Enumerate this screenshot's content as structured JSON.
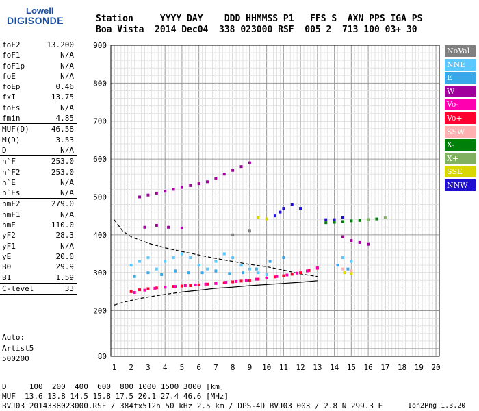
{
  "logo": {
    "line1": "Lowell",
    "line2": "DIGISONDE"
  },
  "header": {
    "line1": "Station     YYYY DAY    DDD HHMMSS P1   FFS S  AXN PPS IGA PS",
    "line2": "Boa Vista  2014 Dec04  338 023000 RSF  005 2  713 100 03+ 30"
  },
  "params": {
    "group1": [
      {
        "name": "foF2",
        "value": "13.200"
      },
      {
        "name": "foF1",
        "value": "N/A"
      },
      {
        "name": "foF1p",
        "value": "N/A"
      },
      {
        "name": "foE",
        "value": "N/A"
      },
      {
        "name": "foEp",
        "value": "0.46"
      },
      {
        "name": "fxI",
        "value": "13.75"
      },
      {
        "name": "foEs",
        "value": "N/A"
      },
      {
        "name": "fmin",
        "value": "4.85"
      }
    ],
    "group2": [
      {
        "name": "MUF(D)",
        "value": "46.58"
      },
      {
        "name": "M(D)",
        "value": "3.53"
      },
      {
        "name": "D",
        "value": "N/A"
      }
    ],
    "group3": [
      {
        "name": "h`F",
        "value": "253.0"
      },
      {
        "name": "h`F2",
        "value": "253.0"
      },
      {
        "name": "h`E",
        "value": "N/A"
      },
      {
        "name": "h`Es",
        "value": "N/A"
      }
    ],
    "group4": [
      {
        "name": "hmF2",
        "value": "279.0"
      },
      {
        "name": "hmF1",
        "value": "N/A"
      },
      {
        "name": "hmE",
        "value": "110.0"
      },
      {
        "name": "yF2",
        "value": "28.3"
      },
      {
        "name": "yF1",
        "value": "N/A"
      },
      {
        "name": "yE",
        "value": "20.0"
      },
      {
        "name": "B0",
        "value": "29.9"
      },
      {
        "name": "B1",
        "value": "1.59"
      }
    ],
    "group5": [
      {
        "name": "C-level",
        "value": "33"
      }
    ]
  },
  "autoscaling": {
    "line1": "Auto:",
    "line2": "Artist5",
    "line3": "500200"
  },
  "legend": [
    {
      "label": "NoVal",
      "color": "#808080"
    },
    {
      "label": "NNE",
      "color": "#5bc8ff"
    },
    {
      "label": "E",
      "color": "#38a8e8"
    },
    {
      "label": "W",
      "color": "#a0009c"
    },
    {
      "label": "Vo-",
      "color": "#ff00b0"
    },
    {
      "label": "Vo+",
      "color": "#ff0030"
    },
    {
      "label": "SSW",
      "color": "#ffb0b0"
    },
    {
      "label": "X-",
      "color": "#00800a"
    },
    {
      "label": "X+",
      "color": "#80b060"
    },
    {
      "label": "SSE",
      "color": "#d8d800"
    },
    {
      "label": "NNW",
      "color": "#2010d0"
    }
  ],
  "footer": {
    "line1": "D     100  200  400  600  800 1000 1500 3000 [km]",
    "line2": "MUF  13.6 13.8 14.5 15.8 17.5 20.1 27.4 46.6 [MHz]",
    "line3": "BVJ03_2014338023000.RSF / 384fx512h 50 kHz 2.5 km / DPS-4D BVJ03 003 / 2.8 N 299.3 E",
    "watermark": "Ion2Png 1.3.20"
  },
  "chart_data": {
    "type": "scatter",
    "title": "",
    "xlabel": "",
    "ylabel": "",
    "xlim": [
      0.8,
      20.2
    ],
    "ylim": [
      80,
      900
    ],
    "x_ticks": [
      1,
      2,
      3,
      4,
      5,
      6,
      7,
      8,
      9,
      10,
      11,
      12,
      13,
      14,
      15,
      16,
      17,
      18,
      19,
      20
    ],
    "y_ticks": [
      80,
      200,
      300,
      400,
      500,
      600,
      700,
      800,
      900
    ],
    "grid": true,
    "legend_position": "right",
    "profile_traces": {
      "upper_dashed": {
        "x": [
          1.0,
          1.5,
          2.0,
          3.0,
          4.0,
          5.0,
          6.0,
          7.0,
          8.0,
          9.0,
          10.0,
          11.0,
          12.0,
          13.0
        ],
        "y": [
          440,
          410,
          395,
          378,
          366,
          356,
          347,
          338,
          330,
          322,
          316,
          307,
          297,
          290
        ]
      },
      "lower_dashed": {
        "x": [
          1.0,
          1.5,
          2.0,
          2.5,
          3.0,
          4.0,
          5.0,
          6.0
        ],
        "y": [
          215,
          222,
          227,
          232,
          236,
          243,
          249,
          254
        ]
      },
      "lower_solid": {
        "x": [
          5.0,
          6.0,
          7.0,
          8.0,
          9.0,
          10.0,
          11.0,
          12.0,
          13.0
        ],
        "y": [
          249,
          254,
          259,
          262,
          266,
          269,
          272,
          275,
          279
        ]
      }
    },
    "series": [
      {
        "name": "Vo+",
        "color": "#ff0030",
        "x": [
          2.0,
          2.5,
          3.0,
          3.5,
          4.0,
          4.5,
          5.0,
          5.5,
          6.0,
          6.5,
          7.0,
          7.5,
          8.0,
          8.5,
          9.0,
          9.5,
          10.0,
          10.5,
          11.0,
          11.5,
          12.0,
          12.5,
          13.0
        ],
        "y": [
          250,
          255,
          258,
          260,
          262,
          264,
          265,
          266,
          268,
          270,
          272,
          274,
          276,
          278,
          280,
          283,
          286,
          289,
          292,
          296,
          300,
          306,
          312
        ]
      },
      {
        "name": "Vo-",
        "color": "#ff00b0",
        "x": [
          2.2,
          2.8,
          3.4,
          4.0,
          4.6,
          5.2,
          5.8,
          6.4,
          7.0,
          7.6,
          8.2,
          8.8,
          9.4,
          10.0,
          10.6,
          11.2,
          11.8,
          12.4,
          13.0
        ],
        "y": [
          248,
          254,
          259,
          262,
          264,
          266,
          268,
          270,
          272,
          275,
          277,
          280,
          283,
          286,
          290,
          294,
          299,
          305,
          313
        ]
      },
      {
        "name": "W",
        "color": "#a0009c",
        "x": [
          2.5,
          3.0,
          3.5,
          4.0,
          4.5,
          5.0,
          5.5,
          6.0,
          6.5,
          7.0,
          7.5,
          8.0,
          8.5,
          9.0,
          2.8,
          3.5,
          4.2,
          5.0,
          14.5,
          15.0,
          15.5,
          16.0
        ],
        "y": [
          500,
          505,
          510,
          515,
          520,
          525,
          530,
          535,
          540,
          548,
          560,
          570,
          580,
          590,
          420,
          425,
          420,
          418,
          395,
          385,
          380,
          375
        ]
      },
      {
        "name": "NNE",
        "color": "#5bc8ff",
        "x": [
          2.0,
          2.5,
          3.0,
          3.5,
          4.0,
          4.5,
          5.0,
          5.5,
          6.0,
          6.5,
          7.0,
          7.5,
          8.0,
          8.5,
          9.0,
          9.5,
          10.0,
          14.5,
          15.0
        ],
        "y": [
          320,
          330,
          340,
          310,
          330,
          340,
          350,
          340,
          320,
          310,
          330,
          350,
          340,
          320,
          310,
          300,
          295,
          340,
          330
        ]
      },
      {
        "name": "E",
        "color": "#38a8e8",
        "x": [
          2.2,
          3.0,
          3.8,
          4.6,
          5.4,
          6.2,
          7.0,
          7.8,
          8.6,
          9.4,
          10.2,
          11.0,
          14.2,
          14.8
        ],
        "y": [
          290,
          300,
          295,
          305,
          300,
          300,
          305,
          298,
          300,
          310,
          330,
          340,
          320,
          310
        ]
      },
      {
        "name": "X-",
        "color": "#00800a",
        "x": [
          13.5,
          14.0,
          14.5,
          15.0,
          15.5,
          16.0,
          16.5
        ],
        "y": [
          432,
          433,
          435,
          437,
          438,
          440,
          442
        ]
      },
      {
        "name": "SSE",
        "color": "#d8d800",
        "x": [
          14.6,
          15.0,
          9.5,
          10.0
        ],
        "y": [
          300,
          298,
          445,
          442
        ]
      },
      {
        "name": "NNW",
        "color": "#2010d0",
        "x": [
          10.5,
          10.8,
          11.0,
          11.5,
          12.0,
          13.5,
          14.0,
          14.5
        ],
        "y": [
          450,
          460,
          470,
          480,
          470,
          440,
          440,
          445
        ]
      },
      {
        "name": "SSW",
        "color": "#ffb0b0",
        "x": [
          14.5,
          15.0
        ],
        "y": [
          310,
          305
        ]
      },
      {
        "name": "X+",
        "color": "#80b060",
        "x": [
          16.0,
          17.0
        ],
        "y": [
          440,
          445
        ]
      },
      {
        "name": "NoVal",
        "color": "#808080",
        "x": [
          8.0,
          9.0
        ],
        "y": [
          400,
          410
        ]
      }
    ]
  }
}
